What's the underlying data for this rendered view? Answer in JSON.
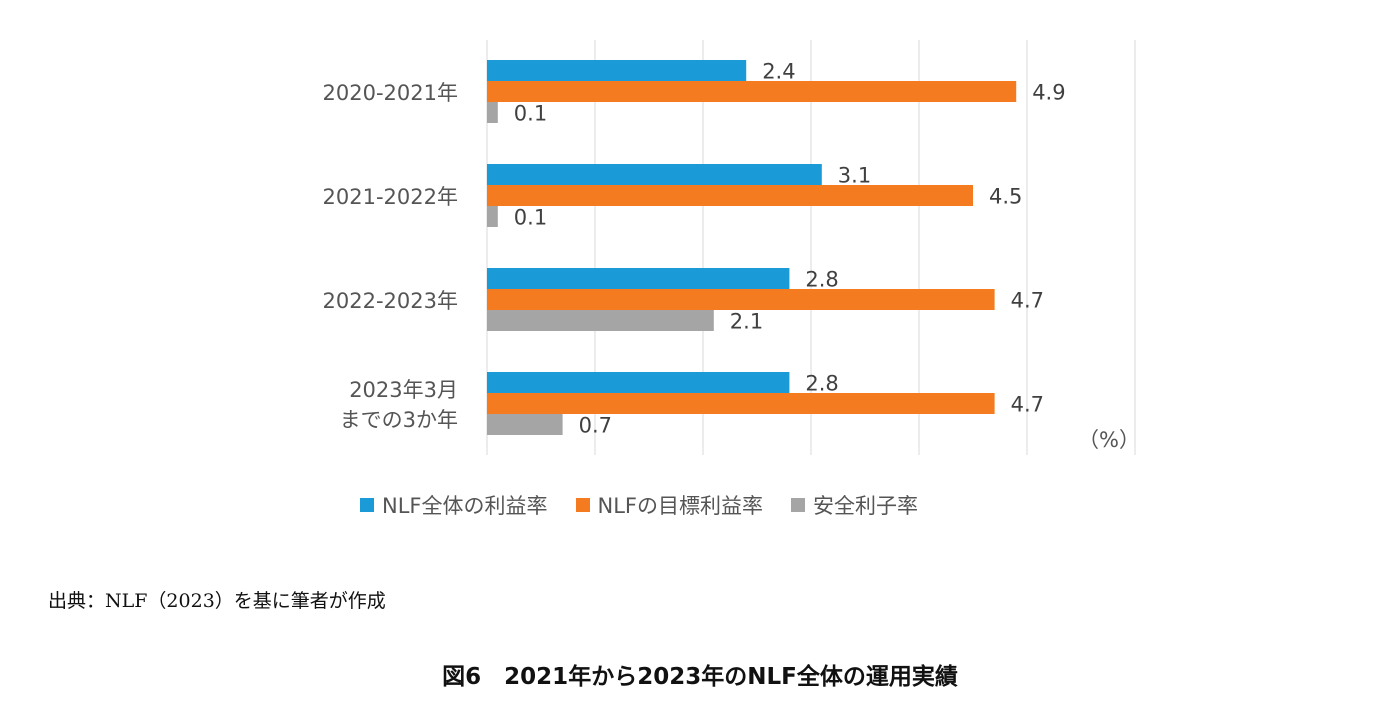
{
  "chart_data": {
    "type": "bar",
    "orientation": "horizontal",
    "categories": [
      "2020-2021年",
      "2021-2022年",
      "2022-2023年",
      "2023年3月までの3か年"
    ],
    "category_lines": [
      [
        "2020-2021年"
      ],
      [
        "2021-2022年"
      ],
      [
        "2022-2023年"
      ],
      [
        "2023年3月",
        "までの3か年"
      ]
    ],
    "series": [
      {
        "name": "NLF全体の利益率",
        "color": "#1a9ad6",
        "values": [
          2.4,
          3.1,
          2.8,
          2.8
        ],
        "labels": [
          "2.4",
          "3.1",
          "2.8",
          "2.8"
        ]
      },
      {
        "name": "NLFの目標利益率",
        "color": "#f47b20",
        "values": [
          4.9,
          4.5,
          4.7,
          4.7
        ],
        "labels": [
          "4.9",
          "4.5",
          "4.7",
          "4.7"
        ]
      },
      {
        "name": "安全利子率",
        "color": "#a5a5a5",
        "values": [
          0.1,
          0.1,
          2.1,
          0.7
        ],
        "labels": [
          "0.1",
          "0.1",
          "2.1",
          "0.7"
        ]
      }
    ],
    "xlim": [
      0,
      6
    ],
    "grid": true,
    "unit_label": "（%）",
    "legend_position": "bottom"
  },
  "source_text": "出典：NLF（2023）を基に筆者が作成",
  "caption": "図6　2021年から2023年のNLF全体の運用実績"
}
